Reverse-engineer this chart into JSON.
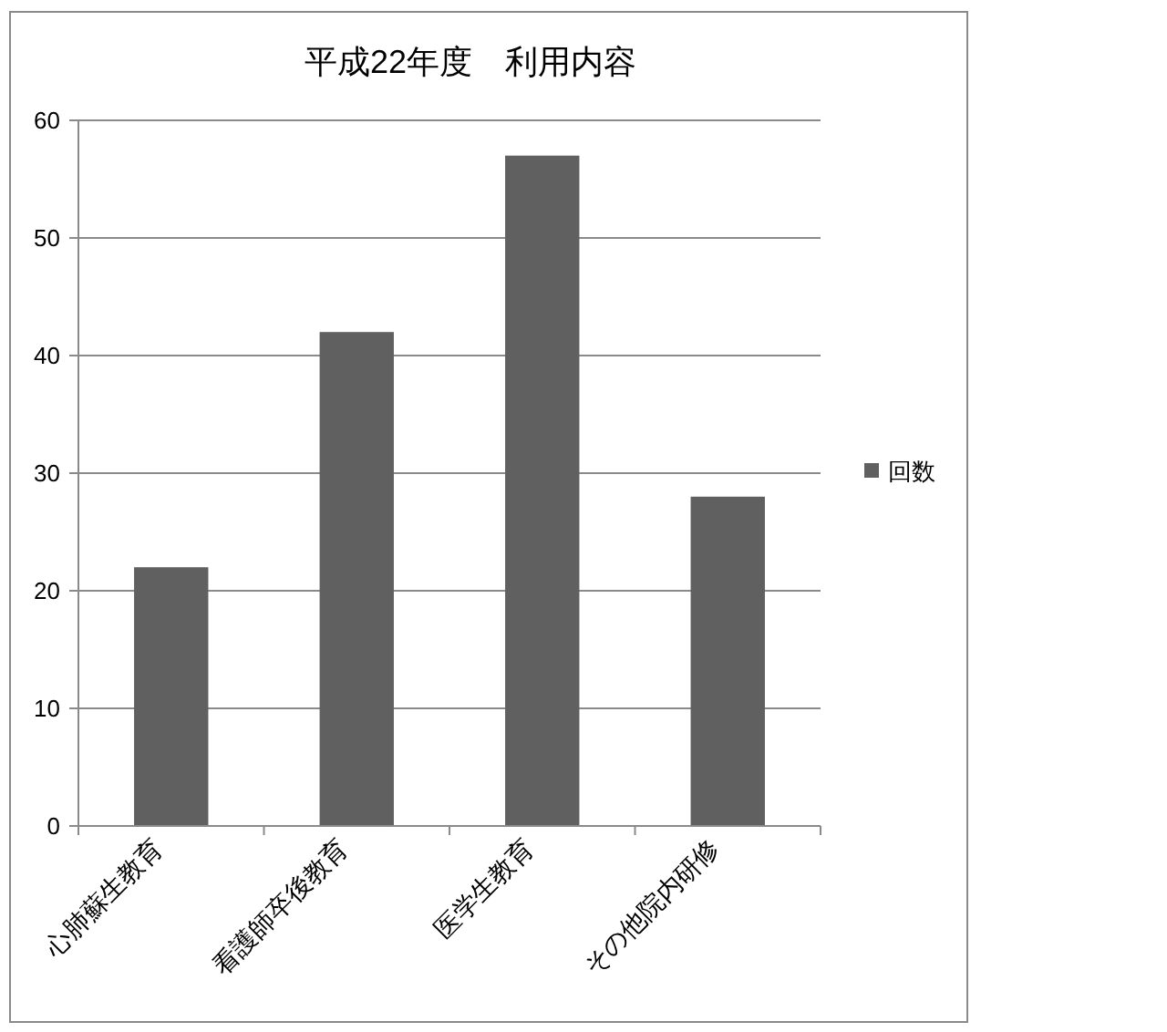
{
  "chart_data": {
    "type": "bar",
    "title": "平成22年度　利用内容",
    "categories": [
      "心肺蘇生教育",
      "看護師卒後教育",
      "医学生教育",
      "その他院内研修"
    ],
    "series": [
      {
        "name": "回数",
        "color": "#606060",
        "values": [
          22,
          42,
          57,
          28
        ]
      }
    ],
    "ylim": [
      0,
      60
    ],
    "yticks": [
      0,
      10,
      20,
      30,
      40,
      50,
      60
    ],
    "grid": "y",
    "legend": "right"
  }
}
